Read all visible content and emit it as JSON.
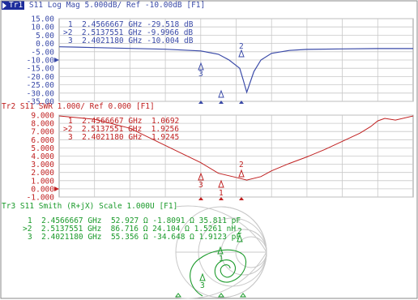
{
  "trace1": {
    "badge": "Tr1",
    "rest": " S11 Log Mag 5.000dB/ Ref -10.00dB [F1]",
    "color": "#3a4aa8",
    "ticks": [
      "15.00",
      "10.00",
      "5.00",
      "0.00",
      "-5.00",
      "-10.00",
      "-15.00",
      "-20.00",
      "-25.00",
      "-30.00",
      "-35.00"
    ],
    "markers": [
      {
        "label": "1",
        "freq": "2.4566667",
        "unit": "GHz",
        "value": "-29.518",
        "vunit": "dB"
      },
      {
        "label": ">2",
        "freq": "2.5137551",
        "unit": "GHz",
        "value": "-9.9966",
        "vunit": "dB"
      },
      {
        "label": "3",
        "freq": "2.4021180",
        "unit": "GHz",
        "value": "-10.004",
        "vunit": "dB"
      }
    ]
  },
  "trace2": {
    "title": "Tr2 S11 SWR 1.000/ Ref 0.000 [F1]",
    "color": "#c02020",
    "ticks": [
      "9.000",
      "8.000",
      "7.000",
      "6.000",
      "5.000",
      "4.000",
      "3.000",
      "2.000",
      "1.000",
      "0.000",
      "-1.000"
    ],
    "markers": [
      {
        "label": "1",
        "freq": "2.4566667",
        "unit": "GHz",
        "value": "1.0692"
      },
      {
        "label": ">2",
        "freq": "2.5137551",
        "unit": "GHz",
        "value": "1.9256"
      },
      {
        "label": "3",
        "freq": "2.4021180",
        "unit": "GHz",
        "value": "1.9245"
      }
    ]
  },
  "trace3": {
    "title": "Tr3 S11 Smith (R+jX) Scale 1.000U [F1]",
    "color": "#1a9a2a",
    "markers": [
      {
        "label": "1",
        "freq": "2.4566667 GHz",
        "r": "52.927 Ω",
        "x": "-1.8091 Ω",
        "c": "35.811 pF"
      },
      {
        "label": ">2",
        "freq": "2.5137551 GHz",
        "r": "86.716 Ω",
        "x": "24.104 Ω",
        "c": "1.5261 nH"
      },
      {
        "label": "3",
        "freq": "2.4021180 GHz",
        "r": "55.356 Ω",
        "x": "-34.648 Ω",
        "c": "1.9123 pF"
      }
    ]
  },
  "grid_color": "#c8c8c8",
  "chart_data": [
    {
      "type": "line",
      "title": "Tr1 S11 Log Mag 5.000dB/ Ref -10.00dB [F1]",
      "xlim": [
        0,
        100
      ],
      "ylim": [
        -35,
        15
      ],
      "x": [
        0,
        5,
        10,
        20,
        30,
        40,
        45,
        48,
        51,
        52,
        53,
        55,
        57,
        60,
        65,
        70,
        80,
        90,
        100
      ],
      "series": [
        {
          "name": "S11",
          "values": [
            -2,
            -2.2,
            -2.5,
            -3,
            -3.5,
            -4.5,
            -6.5,
            -10,
            -15,
            -22,
            -29.5,
            -17,
            -10,
            -6,
            -4.2,
            -3.6,
            -3.3,
            -3.1,
            -3.1
          ]
        }
      ]
    },
    {
      "type": "line",
      "title": "Tr2 S11 SWR 1.000/ Ref 0.000 [F1]",
      "xlim": [
        0,
        100
      ],
      "ylim": [
        -1,
        9
      ],
      "x": [
        0,
        10,
        20,
        30,
        40,
        45,
        50,
        53,
        57,
        60,
        65,
        70,
        75,
        80,
        85,
        88,
        90,
        92,
        95,
        100
      ],
      "series": [
        {
          "name": "S11",
          "values": [
            8.9,
            8.5,
            7.4,
            5.3,
            3.2,
            1.9,
            1.4,
            1.07,
            1.5,
            2.2,
            3.1,
            3.9,
            4.8,
            5.8,
            6.8,
            7.6,
            8.3,
            8.6,
            8.4,
            8.9
          ]
        }
      ]
    }
  ]
}
